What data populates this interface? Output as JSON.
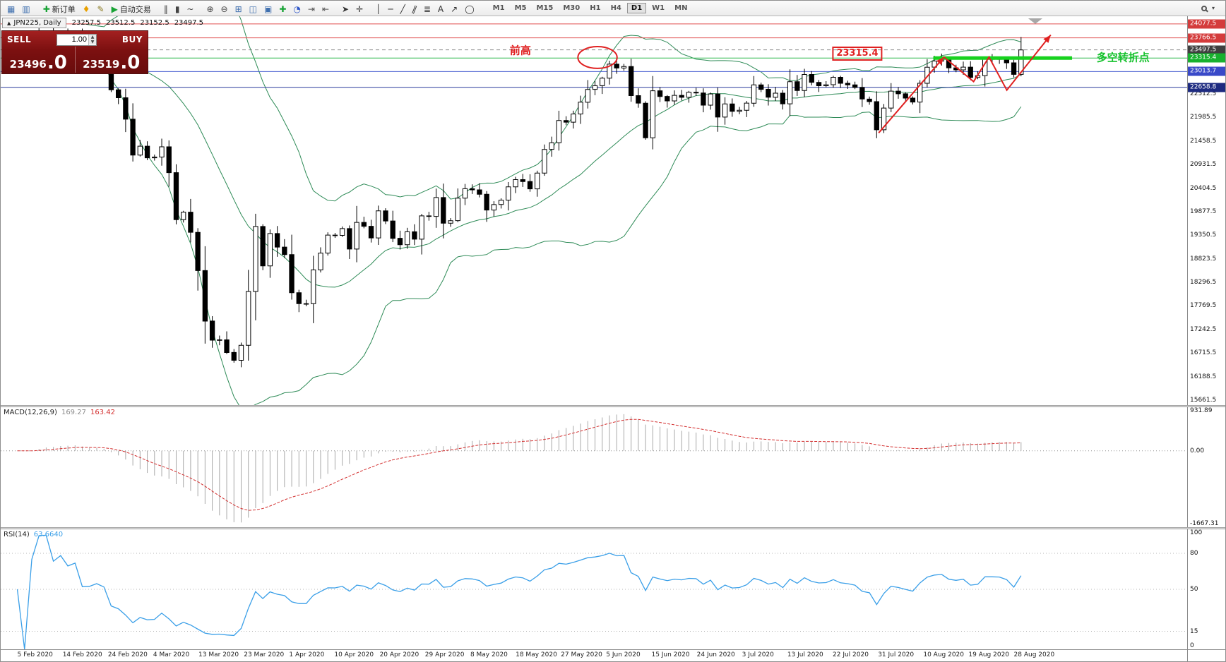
{
  "toolbar": {
    "buttons": [
      {
        "name": "new-chart",
        "glyph": "▦",
        "color": "#3f6fae"
      },
      {
        "name": "profiles",
        "glyph": "▥",
        "color": "#3f6fae"
      },
      {
        "sep": true
      },
      {
        "name": "new-order",
        "glyph": "✚",
        "color": "#18a335",
        "label": "新订单"
      },
      {
        "name": "alerts",
        "glyph": "♦",
        "color": "#e8a000"
      },
      {
        "name": "metaeditor",
        "glyph": "✎",
        "color": "#8a7a20"
      },
      {
        "name": "autotrading",
        "glyph": "▶",
        "color": "#18a335",
        "label": "自动交易"
      },
      {
        "sep": true
      },
      {
        "name": "bar-chart-mode",
        "glyph": "‖",
        "color": "#444444"
      },
      {
        "name": "candlestick-mode",
        "glyph": "▮",
        "color": "#444444"
      },
      {
        "name": "line-chart-mode",
        "glyph": "~",
        "color": "#444444"
      },
      {
        "sep": true
      },
      {
        "name": "zoom-in",
        "glyph": "⊕",
        "color": "#444444"
      },
      {
        "name": "zoom-out",
        "glyph": "⊖",
        "color": "#444444"
      },
      {
        "name": "market-grid",
        "glyph": "⊞",
        "color": "#3f6fae"
      },
      {
        "name": "tile-windows",
        "glyph": "◫",
        "color": "#3f6fae"
      },
      {
        "name": "cascade-windows",
        "glyph": "▣",
        "color": "#3f6fae"
      },
      {
        "name": "indicators",
        "glyph": "✚",
        "color": "#18a335"
      },
      {
        "name": "periods",
        "glyph": "◔",
        "color": "#2c55c8"
      },
      {
        "name": "auto-scroll",
        "glyph": "⇥",
        "color": "#555555"
      },
      {
        "name": "chart-shift",
        "glyph": "⇤",
        "color": "#555555"
      },
      {
        "sep": true
      },
      {
        "name": "cursor",
        "glyph": "➤",
        "color": "#333333"
      },
      {
        "name": "crosshair",
        "glyph": "✛",
        "color": "#333333"
      },
      {
        "sep": true
      },
      {
        "name": "vertical-line",
        "glyph": "│",
        "color": "#333333"
      },
      {
        "name": "horizontal-line",
        "glyph": "─",
        "color": "#333333"
      },
      {
        "name": "trendline",
        "glyph": "╱",
        "color": "#333333"
      },
      {
        "name": "equidistant-channel",
        "glyph": "∥",
        "color": "#333333",
        "slant": true
      },
      {
        "name": "fibonacci",
        "glyph": "≣",
        "color": "#333333"
      },
      {
        "name": "text-tool",
        "glyph": "A",
        "color": "#333333"
      },
      {
        "name": "arrows-tool",
        "glyph": "↗",
        "color": "#333333"
      },
      {
        "name": "shapes-tool",
        "glyph": "◯",
        "color": "#333333"
      },
      {
        "sep": true
      }
    ],
    "timeframes": [
      "M1",
      "M5",
      "M15",
      "M30",
      "H1",
      "H4",
      "D1",
      "W1",
      "MN"
    ],
    "active_timeframe": "D1"
  },
  "chart_header": {
    "symbol_tab": "JPN225, Daily",
    "open": "23257.5",
    "high": "23512.5",
    "low": "23152.5",
    "close": "23497.5"
  },
  "trade_panel": {
    "sell_label": "SELL",
    "buy_label": "BUY",
    "volume": "1.00",
    "sell_price_main": "23496",
    "sell_price_big": ".0",
    "buy_price_main": "23519",
    "buy_price_big": ".0"
  },
  "chart_data": {
    "type": "candlestick",
    "symbol": "JPN225",
    "timeframe": "Daily",
    "price_range": [
      15550,
      24250
    ],
    "x_labels": [
      "5 Feb 2020",
      "14 Feb 2020",
      "24 Feb 2020",
      "4 Mar 2020",
      "13 Mar 2020",
      "23 Mar 2020",
      "1 Apr 2020",
      "10 Apr 2020",
      "20 Apr 2020",
      "29 Apr 2020",
      "8 May 2020",
      "18 May 2020",
      "27 May 2020",
      "5 Jun 2020",
      "15 Jun 2020",
      "24 Jun 2020",
      "3 Jul 2020",
      "13 Jul 2020",
      "22 Jul 2020",
      "31 Jul 2020",
      "10 Aug 2020",
      "19 Aug 2020",
      "28 Aug 2020"
    ],
    "closes": [
      23320,
      23290,
      23380,
      23830,
      23870,
      23690,
      23860,
      23740,
      23830,
      23390,
      23400,
      23480,
      23390,
      22605,
      22426,
      21948,
      21143,
      21344,
      21083,
      21100,
      21329,
      20750,
      19699,
      19867,
      19416,
      18560,
      17431,
      17002,
      17011,
      16727,
      16553,
      16888,
      18092,
      19547,
      18665,
      19389,
      19085,
      18917,
      18065,
      17819,
      17820,
      18576,
      18950,
      19353,
      19346,
      19499,
      19043,
      19638,
      19551,
      19290,
      19897,
      19669,
      19281,
      19138,
      19429,
      19262,
      19783,
      19771,
      20194,
      19619,
      19675,
      20179,
      20391,
      20366,
      20267,
      19915,
      20037,
      20134,
      20433,
      20595,
      20552,
      20388,
      20741,
      21271,
      21419,
      21916,
      21878,
      22062,
      22326,
      22613,
      22696,
      22864,
      23178,
      23091,
      23125,
      22472,
      22305,
      21531,
      22582,
      22455,
      22355,
      22479,
      22437,
      22549,
      22534,
      22260,
      22512,
      21995,
      22288,
      22121,
      22146,
      22306,
      22714,
      22615,
      22438,
      22529,
      22291,
      22785,
      22587,
      22946,
      22770,
      22696,
      22717,
      22884,
      22751,
      22715,
      22657,
      22397,
      22339,
      21710,
      22195,
      22573,
      22514,
      22418,
      22330,
      22750,
      23110,
      23249,
      23289,
      23096,
      23051,
      23111,
      22880,
      22920,
      23296,
      23297,
      23290,
      23208,
      22950,
      23497
    ],
    "bollinger": {
      "period": 20,
      "deviation": 2,
      "color": "#2e8b57"
    },
    "levels": [
      {
        "price": 24077.5,
        "color": "#e05050",
        "style": "solid",
        "tag_bg": "#d43c3c"
      },
      {
        "price": 23766.5,
        "color": "#e05050",
        "style": "solid",
        "tag_bg": "#d43c3c"
      },
      {
        "price": 23497.5,
        "color": "#8a8a8a",
        "style": "dash",
        "tag_bg": "#3f3f3f"
      },
      {
        "price": 23315.4,
        "color": "#2db84d",
        "style": "solid",
        "tag_bg": "#17b12e"
      },
      {
        "price": 23013.7,
        "color": "#4a5fd0",
        "style": "solid",
        "tag_bg": "#3949c8"
      },
      {
        "price": 22658.8,
        "color": "#2b3a9e",
        "style": "solid",
        "tag_bg": "#1d2a80"
      }
    ],
    "axis_ticks": [
      22512.5,
      21985.5,
      21458.5,
      20931.5,
      20404.5,
      19877.5,
      19350.5,
      18823.5,
      18296.5,
      17769.5,
      17242.5,
      16715.5,
      16188.5,
      15661.5
    ],
    "annotations": {
      "prev_high_text": {
        "text": "前高",
        "color": "#e02020",
        "fx": 0.438,
        "fy": 0.088
      },
      "ellipse": {
        "fx": 0.503,
        "fy": 0.106,
        "frx": 0.0165,
        "fry": 0.028,
        "color": "#e02020"
      },
      "price_callout": {
        "text": "23315.4",
        "color": "#e02020",
        "fx": 0.722,
        "fy": 0.097
      },
      "support_line": {
        "fx1": 0.786,
        "fx2": 0.903,
        "price": 23315.4,
        "color": "#17d21e",
        "width": 5
      },
      "turning_point_text": {
        "text": "多空转折点",
        "color": "#17c22e",
        "fx": 0.946,
        "fy": 0.106
      },
      "trend_lines": [
        {
          "points": [
            [
              0.74,
              0.3
            ],
            [
              0.795,
              0.105
            ]
          ],
          "color": "#e02020",
          "arrow": true
        },
        {
          "points": [
            [
              0.795,
              0.105
            ],
            [
              0.82,
              0.168
            ],
            [
              0.833,
              0.105
            ],
            [
              0.848,
              0.19
            ],
            [
              0.885,
              0.048
            ]
          ],
          "color": "#e02020",
          "arrow": true
        }
      ],
      "shift_marker_fx": 0.872
    },
    "macd": {
      "label": "MACD(12,26,9)",
      "value_main": "169.27",
      "value_signal": "163.42",
      "fast": 12,
      "slow": 26,
      "signal": 9,
      "range": [
        -1750,
        1000
      ],
      "axis_values": [
        {
          "label": "931.89",
          "value": 931.89
        },
        {
          "label": "0.00",
          "value": 0
        },
        {
          "label": "-1667.31",
          "value": -1667.31
        }
      ],
      "hist_color": "#a8a8a8",
      "signal_color": "#d33030"
    },
    "rsi": {
      "label": "RSI(14)",
      "value": "63.6640",
      "period": 14,
      "range": [
        0,
        100
      ],
      "levels": [
        80,
        50,
        15
      ],
      "axis_values": [
        {
          "label": "100",
          "value": 100
        },
        {
          "label": "80",
          "value": 80
        },
        {
          "label": "50",
          "value": 50
        },
        {
          "label": "15",
          "value": 15
        },
        {
          "label": "0",
          "value": 0
        }
      ],
      "color": "#3a9fe8"
    }
  }
}
